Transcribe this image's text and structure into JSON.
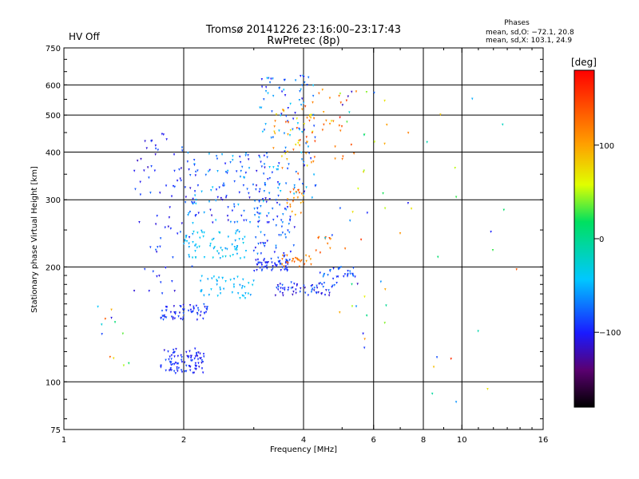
{
  "header": {
    "title_line1": "Tromsø 20141226 23:16:00–23:17:43",
    "title_line2": "RwPretec (8p)",
    "status_label": "HV Off",
    "status_color": "#e0201a",
    "stats_title": "Phases",
    "stats_o": "mean, sd,O: −72.1, 20.8",
    "stats_x": "mean, sd,X: 103.1, 24.9"
  },
  "colorbar": {
    "unit_label": "[deg]",
    "range": [
      -180,
      180
    ],
    "ticks": [
      {
        "value": 100,
        "label": "100"
      },
      {
        "value": 0,
        "label": "0"
      },
      {
        "value": -100,
        "label": "−100"
      }
    ]
  },
  "chart_data": {
    "type": "scatter",
    "xlabel": "Frequency [MHz]",
    "ylabel": "Stationary phase Virtual Height [km]",
    "xscale": "log",
    "yscale": "log",
    "xlim": [
      1,
      16
    ],
    "ylim": [
      75,
      750
    ],
    "grid": true,
    "x_ticks": [
      {
        "value": 1,
        "label": "1"
      },
      {
        "value": 2,
        "label": "2"
      },
      {
        "value": 4,
        "label": "4"
      },
      {
        "value": 6,
        "label": "6"
      },
      {
        "value": 8,
        "label": "8"
      },
      {
        "value": 10,
        "label": "10"
      },
      {
        "value": 16,
        "label": "16"
      }
    ],
    "x_grid": [
      2,
      4,
      6,
      8,
      10
    ],
    "y_ticks": [
      {
        "value": 75,
        "label": "75"
      },
      {
        "value": 100,
        "label": "100"
      },
      {
        "value": 200,
        "label": "200"
      },
      {
        "value": 300,
        "label": "300"
      },
      {
        "value": 400,
        "label": "400"
      },
      {
        "value": 500,
        "label": "500"
      },
      {
        "value": 600,
        "label": "600"
      },
      {
        "value": 750,
        "label": "750"
      }
    ],
    "y_grid": [
      100,
      200,
      300,
      400,
      500,
      600
    ],
    "point_groups": [
      {
        "f": [
          1.75,
          2.25
        ],
        "h": [
          105,
          122
        ],
        "phase": [
          -115,
          -80
        ],
        "n": 90
      },
      {
        "f": [
          1.75,
          2.3
        ],
        "h": [
          145,
          160
        ],
        "phase": [
          -115,
          -75
        ],
        "n": 60
      },
      {
        "f": [
          2.2,
          3.0
        ],
        "h": [
          165,
          190
        ],
        "phase": [
          -60,
          -35
        ],
        "n": 45
      },
      {
        "f": [
          3.0,
          3.7
        ],
        "h": [
          195,
          210
        ],
        "phase": [
          -110,
          -80
        ],
        "n": 55
      },
      {
        "f": [
          3.4,
          4.9
        ],
        "h": [
          168,
          182
        ],
        "phase": [
          -120,
          -70
        ],
        "n": 60
      },
      {
        "f": [
          3.5,
          4.2
        ],
        "h": [
          200,
          215
        ],
        "phase": [
          100,
          140
        ],
        "n": 25
      },
      {
        "f": [
          4.4,
          5.4
        ],
        "h": [
          185,
          200
        ],
        "phase": [
          -100,
          -60
        ],
        "n": 30
      },
      {
        "f": [
          2.0,
          2.9
        ],
        "h": [
          210,
          250
        ],
        "phase": [
          -60,
          -30
        ],
        "n": 70
      },
      {
        "f": [
          1.5,
          2.1
        ],
        "h": [
          170,
          450
        ],
        "phase": [
          -120,
          -75
        ],
        "n": 70
      },
      {
        "f": [
          2.0,
          3.3
        ],
        "h": [
          260,
          400
        ],
        "phase": [
          -115,
          -40
        ],
        "n": 130
      },
      {
        "f": [
          3.0,
          3.8
        ],
        "h": [
          210,
          300
        ],
        "phase": [
          -110,
          -55
        ],
        "n": 60
      },
      {
        "f": [
          3.1,
          4.3
        ],
        "h": [
          300,
          640
        ],
        "phase": [
          -110,
          -40
        ],
        "n": 110
      },
      {
        "f": [
          3.3,
          4.3
        ],
        "h": [
          350,
          520
        ],
        "phase": [
          60,
          150
        ],
        "n": 45
      },
      {
        "f": [
          3.6,
          4.0
        ],
        "h": [
          270,
          320
        ],
        "phase": [
          90,
          140
        ],
        "n": 20
      },
      {
        "f": [
          4.0,
          5.5
        ],
        "h": [
          380,
          600
        ],
        "phase": [
          100,
          150
        ],
        "n": 25
      },
      {
        "f": [
          4.3,
          4.7
        ],
        "h": [
          215,
          240
        ],
        "phase": [
          110,
          145
        ],
        "n": 10
      },
      {
        "f": [
          4.5,
          6.5
        ],
        "h": [
          120,
          600
        ],
        "phase": [
          -120,
          170
        ],
        "n": 45
      },
      {
        "f": [
          1.2,
          1.5
        ],
        "h": [
          110,
          180
        ],
        "phase": [
          -110,
          140
        ],
        "n": 12
      },
      {
        "f": [
          6.5,
          14.0
        ],
        "h": [
          80,
          560
        ],
        "phase": [
          -120,
          160
        ],
        "n": 22
      }
    ]
  }
}
